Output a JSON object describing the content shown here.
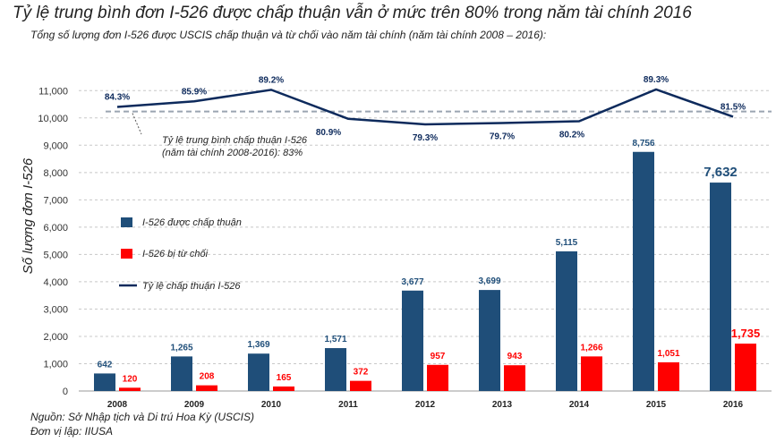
{
  "header": {
    "title": "Tỷ lệ trung bình đơn I-526 được chấp thuận vẫn ở mức trên 80% trong năm tài chính 2016",
    "subtitle": "Tổng số lượng đơn I-526 được USCIS chấp thuận và từ chối vào năm tài chính (năm tài chính 2008 – 2016):"
  },
  "footer": {
    "source": "Nguồn: Sở Nhập tịch và Di trú Hoa Kỳ (USCIS)",
    "author": "Đơn vị lập: IIUSA"
  },
  "colors": {
    "approved": "#1f4e79",
    "denied": "#ff0000",
    "rate_line": "#0d2a5c",
    "avg_line": "#9aa5b1",
    "grid": "#c8c8c8"
  },
  "chart_data": {
    "type": "bar",
    "categories": [
      "2008",
      "2009",
      "2010",
      "2011",
      "2012",
      "2013",
      "2014",
      "2015",
      "2016"
    ],
    "series": [
      {
        "name": "I-526 được chấp thuận",
        "type": "bar",
        "values": [
          642,
          1265,
          1369,
          1571,
          3677,
          3699,
          5115,
          8756,
          7632
        ]
      },
      {
        "name": "I-526 bị từ chối",
        "type": "bar",
        "values": [
          120,
          208,
          165,
          372,
          957,
          943,
          1266,
          1051,
          1735
        ]
      },
      {
        "name": "Tỷ lệ chấp thuận I-526",
        "type": "line",
        "values": [
          84.3,
          85.9,
          89.2,
          80.9,
          79.3,
          79.7,
          80.2,
          89.3,
          81.5
        ],
        "labels": [
          "84.3%",
          "85.9%",
          "89.2%",
          "80.9%",
          "79.3%",
          "79.7%",
          "80.2%",
          "89.3%",
          "81.5%"
        ]
      }
    ],
    "data_labels": {
      "approved": [
        "642",
        "1,265",
        "1,369",
        "1,571",
        "3,677",
        "3,699",
        "5,115",
        "8,756",
        "7,632"
      ],
      "denied": [
        "120",
        "208",
        "165",
        "372",
        "957",
        "943",
        "1,266",
        "1,051",
        "1,735"
      ]
    },
    "average": {
      "value": 83,
      "label_line1": "Tỷ lệ trung bình chấp thuận I-526",
      "label_line2": "(năm tài chính 2008-2016): 83%"
    },
    "ylabel": "Số lượng đơn I-526",
    "xlabel": "",
    "ylim": [
      0,
      11500
    ],
    "yticks": [
      0,
      1000,
      2000,
      3000,
      4000,
      5000,
      6000,
      7000,
      8000,
      9000,
      10000,
      11000
    ],
    "ytick_labels": [
      "0",
      "1,000",
      "2,000",
      "3,000",
      "4,000",
      "5,000",
      "6,000",
      "7,000",
      "8,000",
      "9,000",
      "10,000",
      "11,000"
    ],
    "legend_position": "left-middle",
    "grid": true
  }
}
